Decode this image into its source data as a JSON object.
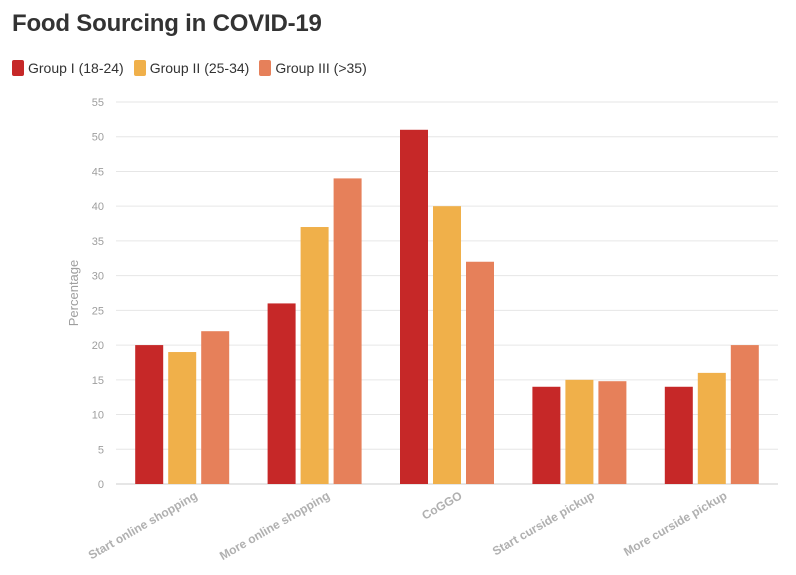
{
  "chart_data": {
    "type": "bar",
    "title": "Food Sourcing in COVID-19",
    "ylabel": "Percentage",
    "xlabel": "",
    "ylim": [
      0,
      55
    ],
    "yticks": [
      0,
      5,
      10,
      15,
      20,
      25,
      30,
      35,
      40,
      45,
      50,
      55
    ],
    "grid": true,
    "legend_position": "top-left",
    "categories": [
      "Start online shopping",
      "More online shopping",
      "CoGGO",
      "Start curside pickup",
      "More curside pickup"
    ],
    "series": [
      {
        "name": "Group I (18-24)",
        "color": "#c62828",
        "values": [
          20,
          26,
          51,
          14,
          14
        ]
      },
      {
        "name": "Group II (25-34)",
        "color": "#f0b04a",
        "values": [
          19,
          37,
          40,
          15,
          16
        ]
      },
      {
        "name": "Group III (>35)",
        "color": "#e6805a",
        "values": [
          22,
          44,
          32,
          14.8,
          20
        ]
      }
    ]
  }
}
